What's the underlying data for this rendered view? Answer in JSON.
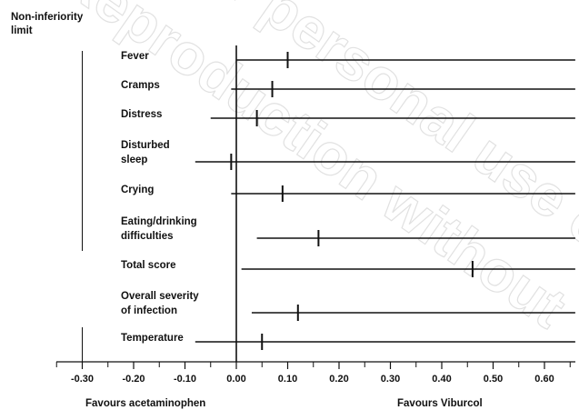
{
  "chart_data": {
    "type": "forest",
    "title": "",
    "non_inferiority_label": [
      "Non-inferiority",
      "limit"
    ],
    "non_inferiority_limit": -0.3,
    "xlim": [
      -0.35,
      0.66
    ],
    "x_ticks": [
      -0.3,
      -0.2,
      -0.1,
      0.0,
      0.1,
      0.2,
      0.3,
      0.4,
      0.5,
      0.6
    ],
    "x_tick_labels": [
      "-0.30",
      "-0.20",
      "-0.10",
      "0.00",
      "0.10",
      "0.20",
      "0.30",
      "0.40",
      "0.50",
      "0.60"
    ],
    "favours_left": "Favours acetaminophen",
    "favours_right": "Favours Viburcol",
    "rows": [
      {
        "label": [
          "Fever"
        ],
        "estimate": 0.1,
        "lower": 0.0,
        "upper": 0.66
      },
      {
        "label": [
          "Cramps"
        ],
        "estimate": 0.07,
        "lower": -0.01,
        "upper": 0.66
      },
      {
        "label": [
          "Distress"
        ],
        "estimate": 0.04,
        "lower": -0.05,
        "upper": 0.66
      },
      {
        "label": [
          "Disturbed",
          "sleep"
        ],
        "estimate": -0.01,
        "lower": -0.08,
        "upper": 0.66
      },
      {
        "label": [
          "Crying"
        ],
        "estimate": 0.09,
        "lower": -0.01,
        "upper": 0.66
      },
      {
        "label": [
          "Eating/drinking",
          "difficulties"
        ],
        "estimate": 0.16,
        "lower": 0.04,
        "upper": 0.66
      },
      {
        "label": [
          "Total score"
        ],
        "estimate": 0.46,
        "lower": 0.01,
        "upper": 0.66
      },
      {
        "label": [
          "Overall severity",
          "of infection"
        ],
        "estimate": 0.12,
        "lower": 0.03,
        "upper": 0.66
      },
      {
        "label": [
          "Temperature"
        ],
        "estimate": 0.05,
        "lower": -0.08,
        "upper": 0.66
      }
    ]
  }
}
